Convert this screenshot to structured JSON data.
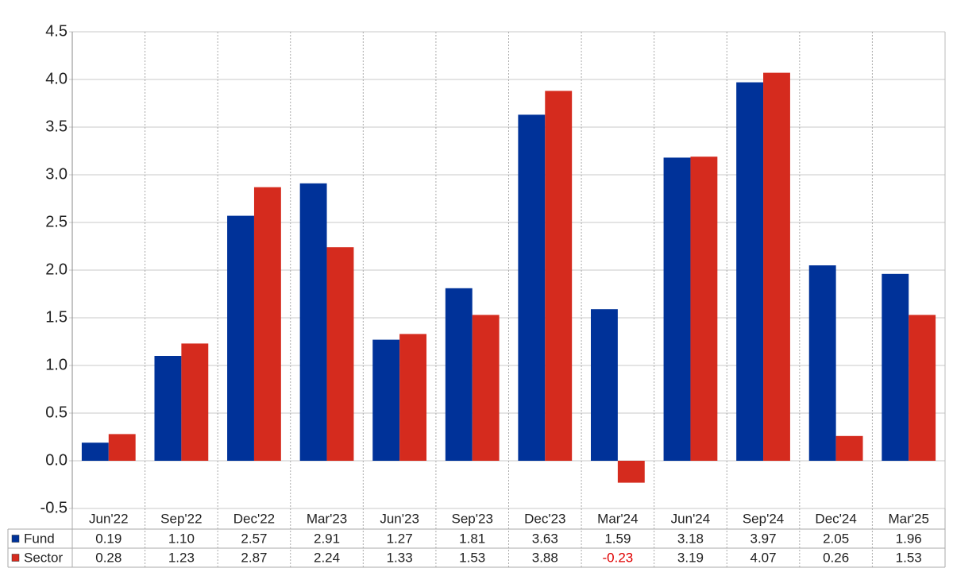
{
  "chart_data": {
    "type": "bar",
    "categories": [
      "Jun'22",
      "Sep'22",
      "Dec'22",
      "Mar'23",
      "Jun'23",
      "Sep'23",
      "Dec'23",
      "Mar'24",
      "Jun'24",
      "Sep'24",
      "Dec'24",
      "Mar'25"
    ],
    "series": [
      {
        "name": "Fund",
        "color": "#003299",
        "values": [
          0.19,
          1.1,
          2.57,
          2.91,
          1.27,
          1.81,
          3.63,
          1.59,
          3.18,
          3.97,
          2.05,
          1.96
        ],
        "value_labels": [
          "0.19",
          "1.10",
          "2.57",
          "2.91",
          "1.27",
          "1.81",
          "3.63",
          "1.59",
          "3.18",
          "3.97",
          "2.05",
          "1.96"
        ]
      },
      {
        "name": "Sector",
        "color": "#d52b1e",
        "values": [
          0.28,
          1.23,
          2.87,
          2.24,
          1.33,
          1.53,
          3.88,
          -0.23,
          3.19,
          4.07,
          0.26,
          1.53
        ],
        "value_labels": [
          "0.28",
          "1.23",
          "2.87",
          "2.24",
          "1.33",
          "1.53",
          "3.88",
          "-0.23",
          "3.19",
          "4.07",
          "0.26",
          "1.53"
        ]
      }
    ],
    "ylim": [
      -0.5,
      4.5
    ],
    "yticks": [
      -0.5,
      {
        "value": 0,
        "label": "0.0"
      },
      0.5,
      {
        "value": 1,
        "label": "1.0"
      },
      1.5,
      {
        "value": 2,
        "label": "2.0"
      },
      2.5,
      {
        "value": 3,
        "label": "3.0"
      },
      3.5,
      {
        "value": 4,
        "label": "4.0"
      },
      4.5
    ],
    "grid": true
  }
}
